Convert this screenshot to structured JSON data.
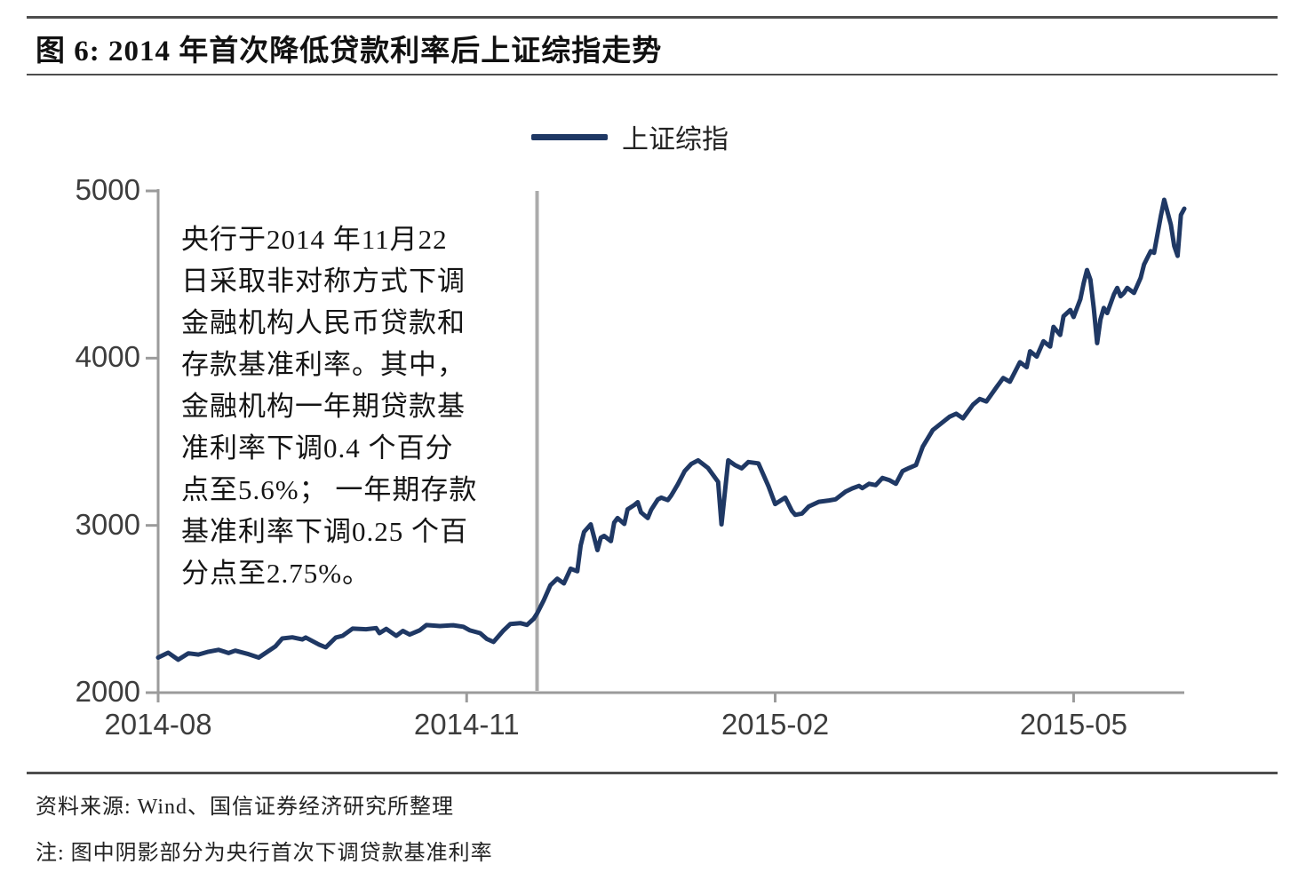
{
  "header": {
    "title": "图 6:  2014 年首次降低贷款利率后上证综指走势"
  },
  "legend": {
    "label": "上证综指"
  },
  "annotation": {
    "lines": [
      "央行于2014 年11月22",
      "日采取非对称方式下调",
      "金融机构人民币贷款和",
      "存款基准利率。其中，",
      "金融机构一年期贷款基",
      "准利率下调0.4 个百分",
      "点至5.6%； 一年期存款",
      "基准利率下调0.25 个百",
      "分点至2.75%。"
    ]
  },
  "footer": {
    "source": "资料来源: Wind、国信证券经济研究所整理",
    "note": "注: 图中阴影部分为央行首次下调贷款基准利率"
  },
  "colors": {
    "series_line": "#1f3864",
    "axis": "#9b9b9b",
    "event_line": "#ababab",
    "tick_text": "#3d3d3d"
  },
  "chart_data": {
    "type": "line",
    "title": "2014 年首次降低贷款利率后上证综指走势",
    "xlabel": "",
    "ylabel": "",
    "ylim": [
      2000,
      5000
    ],
    "y_ticks": [
      2000,
      3000,
      4000,
      5000
    ],
    "x_range": [
      "2014-08-01",
      "2015-06-03"
    ],
    "x_ticks": [
      {
        "date": "2014-08-01",
        "label": "2014-08"
      },
      {
        "date": "2014-11-01",
        "label": "2014-11"
      },
      {
        "date": "2015-02-01",
        "label": "2015-02"
      },
      {
        "date": "2015-05-01",
        "label": "2015-05"
      }
    ],
    "grid": false,
    "legend_position": "top-center",
    "event_line": {
      "date": "2014-11-22",
      "meaning": "央行首次下调贷款基准利率"
    },
    "series": [
      {
        "name": "上证综指",
        "points": [
          [
            "2014-08-01",
            2210
          ],
          [
            "2014-08-04",
            2239
          ],
          [
            "2014-08-07",
            2197
          ],
          [
            "2014-08-10",
            2235
          ],
          [
            "2014-08-13",
            2228
          ],
          [
            "2014-08-16",
            2245
          ],
          [
            "2014-08-19",
            2256
          ],
          [
            "2014-08-22",
            2237
          ],
          [
            "2014-08-24",
            2251
          ],
          [
            "2014-08-28",
            2230
          ],
          [
            "2014-08-31",
            2210
          ],
          [
            "2014-09-05",
            2277
          ],
          [
            "2014-09-07",
            2324
          ],
          [
            "2014-09-10",
            2331
          ],
          [
            "2014-09-13",
            2318
          ],
          [
            "2014-09-14",
            2330
          ],
          [
            "2014-09-18",
            2287
          ],
          [
            "2014-09-20",
            2271
          ],
          [
            "2014-09-23",
            2330
          ],
          [
            "2014-09-25",
            2340
          ],
          [
            "2014-09-28",
            2383
          ],
          [
            "2014-10-02",
            2379
          ],
          [
            "2014-10-05",
            2386
          ],
          [
            "2014-10-06",
            2356
          ],
          [
            "2014-10-08",
            2381
          ],
          [
            "2014-10-11",
            2340
          ],
          [
            "2014-10-13",
            2369
          ],
          [
            "2014-10-15",
            2347
          ],
          [
            "2014-10-18",
            2373
          ],
          [
            "2014-10-20",
            2404
          ],
          [
            "2014-10-24",
            2398
          ],
          [
            "2014-10-28",
            2403
          ],
          [
            "2014-10-31",
            2394
          ],
          [
            "2014-11-02",
            2372
          ],
          [
            "2014-11-05",
            2356
          ],
          [
            "2014-11-07",
            2321
          ],
          [
            "2014-11-09",
            2303
          ],
          [
            "2014-11-12",
            2372
          ],
          [
            "2014-11-14",
            2410
          ],
          [
            "2014-11-17",
            2416
          ],
          [
            "2014-11-19",
            2405
          ],
          [
            "2014-11-21",
            2441
          ],
          [
            "2014-11-22",
            2473
          ],
          [
            "2014-11-24",
            2553
          ],
          [
            "2014-11-26",
            2643
          ],
          [
            "2014-11-28",
            2681
          ],
          [
            "2014-11-30",
            2653
          ],
          [
            "2014-12-02",
            2741
          ],
          [
            "2014-12-04",
            2726
          ],
          [
            "2014-12-05",
            2881
          ],
          [
            "2014-12-06",
            2961
          ],
          [
            "2014-12-08",
            3006
          ],
          [
            "2014-12-10",
            2852
          ],
          [
            "2014-12-11",
            2926
          ],
          [
            "2014-12-12",
            2937
          ],
          [
            "2014-12-14",
            2906
          ],
          [
            "2014-12-15",
            3017
          ],
          [
            "2014-12-16",
            3044
          ],
          [
            "2014-12-18",
            3009
          ],
          [
            "2014-12-19",
            3096
          ],
          [
            "2014-12-21",
            3122
          ],
          [
            "2014-12-22",
            3139
          ],
          [
            "2014-12-23",
            3078
          ],
          [
            "2014-12-25",
            3044
          ],
          [
            "2014-12-26",
            3093
          ],
          [
            "2014-12-28",
            3155
          ],
          [
            "2014-12-29",
            3166
          ],
          [
            "2014-12-31",
            3151
          ],
          [
            "2015-01-01",
            3179
          ],
          [
            "2015-01-03",
            3246
          ],
          [
            "2015-01-05",
            3324
          ],
          [
            "2015-01-07",
            3368
          ],
          [
            "2015-01-09",
            3389
          ],
          [
            "2015-01-11",
            3359
          ],
          [
            "2015-01-12",
            3343
          ],
          [
            "2015-01-15",
            3260
          ],
          [
            "2015-01-16",
            3006
          ],
          [
            "2015-01-18",
            3389
          ],
          [
            "2015-01-20",
            3361
          ],
          [
            "2015-01-22",
            3341
          ],
          [
            "2015-01-24",
            3379
          ],
          [
            "2015-01-27",
            3371
          ],
          [
            "2015-01-30",
            3234
          ],
          [
            "2015-02-01",
            3128
          ],
          [
            "2015-02-04",
            3166
          ],
          [
            "2015-02-06",
            3086
          ],
          [
            "2015-02-07",
            3063
          ],
          [
            "2015-02-09",
            3071
          ],
          [
            "2015-02-11",
            3113
          ],
          [
            "2015-02-14",
            3141
          ],
          [
            "2015-02-17",
            3149
          ],
          [
            "2015-02-19",
            3156
          ],
          [
            "2015-02-22",
            3202
          ],
          [
            "2015-02-24",
            3221
          ],
          [
            "2015-02-26",
            3236
          ],
          [
            "2015-02-27",
            3223
          ],
          [
            "2015-03-01",
            3249
          ],
          [
            "2015-03-03",
            3241
          ],
          [
            "2015-03-05",
            3284
          ],
          [
            "2015-03-07",
            3271
          ],
          [
            "2015-03-09",
            3249
          ],
          [
            "2015-03-11",
            3325
          ],
          [
            "2015-03-13",
            3344
          ],
          [
            "2015-03-15",
            3361
          ],
          [
            "2015-03-17",
            3470
          ],
          [
            "2015-03-20",
            3570
          ],
          [
            "2015-03-25",
            3650
          ],
          [
            "2015-03-27",
            3668
          ],
          [
            "2015-03-29",
            3640
          ],
          [
            "2015-04-01",
            3722
          ],
          [
            "2015-04-03",
            3756
          ],
          [
            "2015-04-05",
            3741
          ],
          [
            "2015-04-08",
            3826
          ],
          [
            "2015-04-10",
            3881
          ],
          [
            "2015-04-12",
            3859
          ],
          [
            "2015-04-15",
            3976
          ],
          [
            "2015-04-17",
            3946
          ],
          [
            "2015-04-18",
            4041
          ],
          [
            "2015-04-20",
            4009
          ],
          [
            "2015-04-22",
            4101
          ],
          [
            "2015-04-24",
            4069
          ],
          [
            "2015-04-25",
            4187
          ],
          [
            "2015-04-27",
            4139
          ],
          [
            "2015-04-28",
            4251
          ],
          [
            "2015-04-30",
            4288
          ],
          [
            "2015-05-01",
            4246
          ],
          [
            "2015-05-03",
            4352
          ],
          [
            "2015-05-04",
            4450
          ],
          [
            "2015-05-05",
            4527
          ],
          [
            "2015-05-06",
            4470
          ],
          [
            "2015-05-07",
            4300
          ],
          [
            "2015-05-08",
            4090
          ],
          [
            "2015-05-09",
            4230
          ],
          [
            "2015-05-10",
            4300
          ],
          [
            "2015-05-11",
            4270
          ],
          [
            "2015-05-13",
            4380
          ],
          [
            "2015-05-14",
            4420
          ],
          [
            "2015-05-15",
            4370
          ],
          [
            "2015-05-16",
            4390
          ],
          [
            "2015-05-17",
            4420
          ],
          [
            "2015-05-19",
            4390
          ],
          [
            "2015-05-21",
            4480
          ],
          [
            "2015-05-22",
            4560
          ],
          [
            "2015-05-23",
            4600
          ],
          [
            "2015-05-24",
            4640
          ],
          [
            "2015-05-25",
            4630
          ],
          [
            "2015-05-26",
            4740
          ],
          [
            "2015-05-27",
            4850
          ],
          [
            "2015-05-28",
            4947
          ],
          [
            "2015-05-30",
            4798
          ],
          [
            "2015-05-31",
            4670
          ],
          [
            "2015-06-01",
            4612
          ],
          [
            "2015-06-02",
            4856
          ],
          [
            "2015-06-03",
            4894
          ]
        ]
      }
    ]
  }
}
